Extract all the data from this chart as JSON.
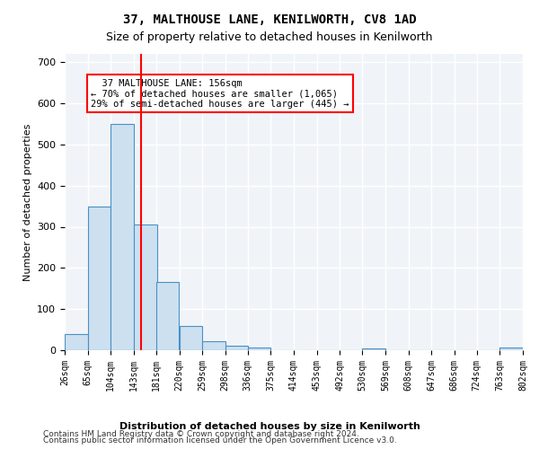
{
  "title1": "37, MALTHOUSE LANE, KENILWORTH, CV8 1AD",
  "title2": "Size of property relative to detached houses in Kenilworth",
  "xlabel": "Distribution of detached houses by size in Kenilworth",
  "ylabel": "Number of detached properties",
  "footer1": "Contains HM Land Registry data © Crown copyright and database right 2024.",
  "footer2": "Contains public sector information licensed under the Open Government Licence v3.0.",
  "bins": [
    26,
    65,
    104,
    143,
    181,
    220,
    259,
    298,
    336,
    375,
    414,
    453,
    492,
    530,
    569,
    608,
    647,
    686,
    724,
    763,
    802
  ],
  "bar_heights": [
    40,
    350,
    550,
    305,
    165,
    60,
    22,
    11,
    6,
    0,
    0,
    0,
    0,
    5,
    0,
    0,
    0,
    0,
    0,
    6
  ],
  "bar_color": "#cce0f0",
  "bar_edge_color": "#4a90c4",
  "red_line_x": 156,
  "annotation_text": "  37 MALTHOUSE LANE: 156sqm\n← 70% of detached houses are smaller (1,065)\n29% of semi-detached houses are larger (445) →",
  "annotation_box_color": "white",
  "annotation_box_edge": "red",
  "ylim": [
    0,
    720
  ],
  "background_color": "#f0f4f8",
  "tick_labels": [
    "26sqm",
    "65sqm",
    "104sqm",
    "143sqm",
    "181sqm",
    "220sqm",
    "259sqm",
    "298sqm",
    "336sqm",
    "375sqm",
    "414sqm",
    "453sqm",
    "492sqm",
    "530sqm",
    "569sqm",
    "608sqm",
    "647sqm",
    "686sqm",
    "724sqm",
    "763sqm",
    "802sqm"
  ]
}
